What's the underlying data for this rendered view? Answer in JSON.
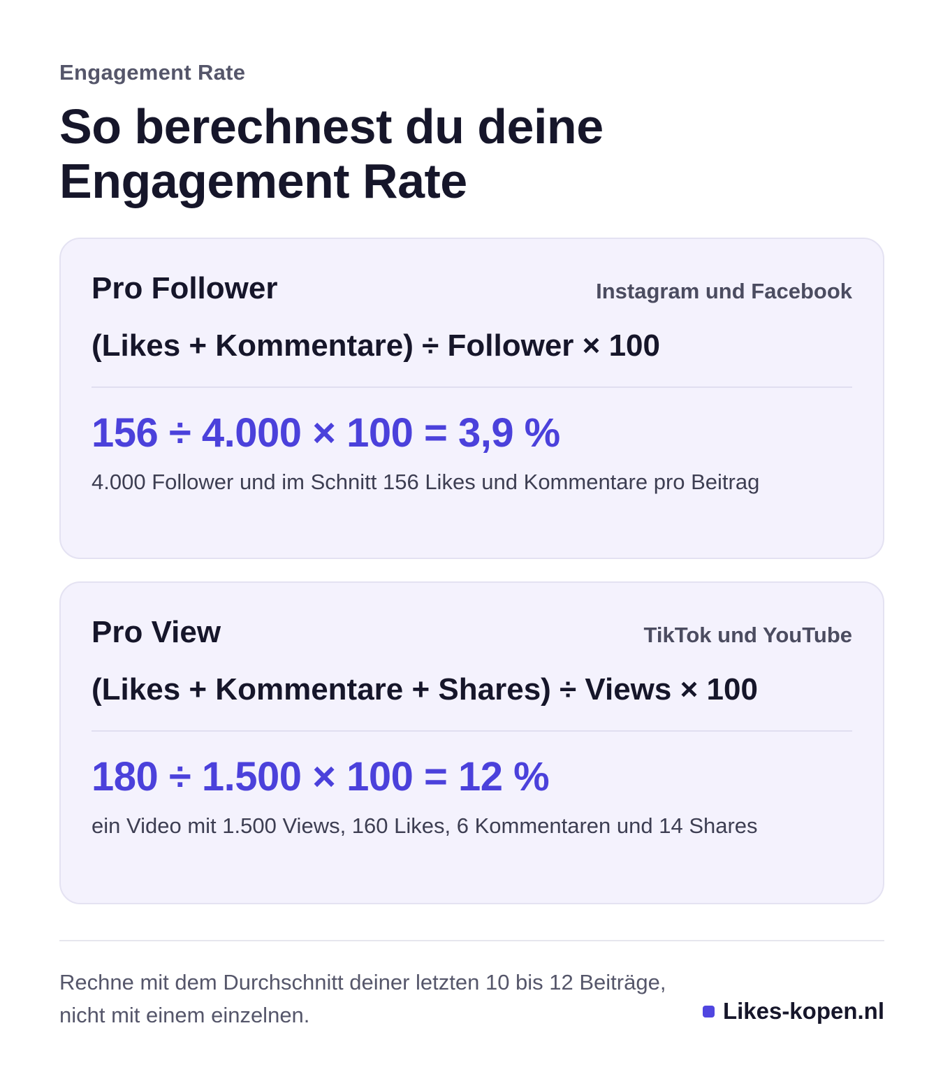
{
  "header": {
    "eyebrow": "Engagement Rate",
    "title": "So berechnest du deine Engagement Rate"
  },
  "cards": [
    {
      "title": "Pro Follower",
      "platforms": "Instagram und Facebook",
      "formula": "(Likes + Kommentare) ÷ Follower × 100",
      "example": "156 ÷ 4.000 × 100 = 3,9 %",
      "note": "4.000 Follower und im Schnitt 156 Likes und Kommentare pro Beitrag"
    },
    {
      "title": "Pro View",
      "platforms": "TikTok und YouTube",
      "formula": "(Likes + Kommentare + Shares) ÷ Views × 100",
      "example": "180 ÷ 1.500 × 100 = 12 %",
      "note": "ein Video mit 1.500 Views, 160 Likes, 6 Kommentaren und 14 Shares"
    }
  ],
  "footer": {
    "note": "Rechne mit dem Durchschnitt deiner letzten 10 bis 12 Beiträge, nicht mit einem einzelnen.",
    "brand": "Likes-kopen.nl"
  },
  "colors": {
    "accent": "#4b41db",
    "card_background": "#f4f2fd",
    "card_border": "#e4e2f2",
    "text": "#16162a",
    "muted": "#55566a"
  }
}
